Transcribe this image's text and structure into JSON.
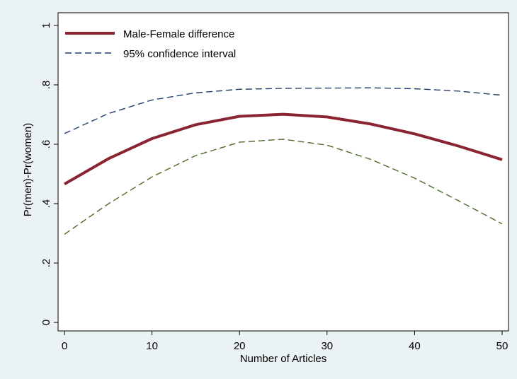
{
  "chart_data": {
    "type": "line",
    "xlabel": "Number of Articles",
    "ylabel": "Pr(men)-Pr(women)",
    "xlim": [
      0,
      50
    ],
    "ylim": [
      0,
      1
    ],
    "x_ticks": [
      0,
      10,
      20,
      30,
      40,
      50
    ],
    "x_tick_labels": [
      "0",
      "10",
      "20",
      "30",
      "40",
      "50"
    ],
    "y_ticks": [
      0,
      0.2,
      0.4,
      0.6,
      0.8,
      1
    ],
    "y_tick_labels": [
      "0",
      ".2",
      ".4",
      ".6",
      ".8",
      "1"
    ],
    "grid": false,
    "legend_position": "top-left",
    "x": [
      0,
      5,
      10,
      15,
      20,
      25,
      30,
      35,
      40,
      45,
      50
    ],
    "series": [
      {
        "name": "Male-Female difference",
        "style": "solid",
        "color": "#8b2432",
        "values": [
          0.466,
          0.551,
          0.619,
          0.666,
          0.694,
          0.701,
          0.692,
          0.668,
          0.635,
          0.594,
          0.548
        ]
      },
      {
        "name": "95% confidence interval",
        "style": "dashed",
        "color": "#1f3d6b",
        "values": [
          0.636,
          0.703,
          0.749,
          0.773,
          0.785,
          0.788,
          0.789,
          0.79,
          0.787,
          0.779,
          0.765
        ]
      },
      {
        "style": "dashed",
        "color": "#4a6a25",
        "values": [
          0.297,
          0.399,
          0.49,
          0.562,
          0.607,
          0.617,
          0.597,
          0.549,
          0.486,
          0.41,
          0.332
        ]
      }
    ]
  }
}
